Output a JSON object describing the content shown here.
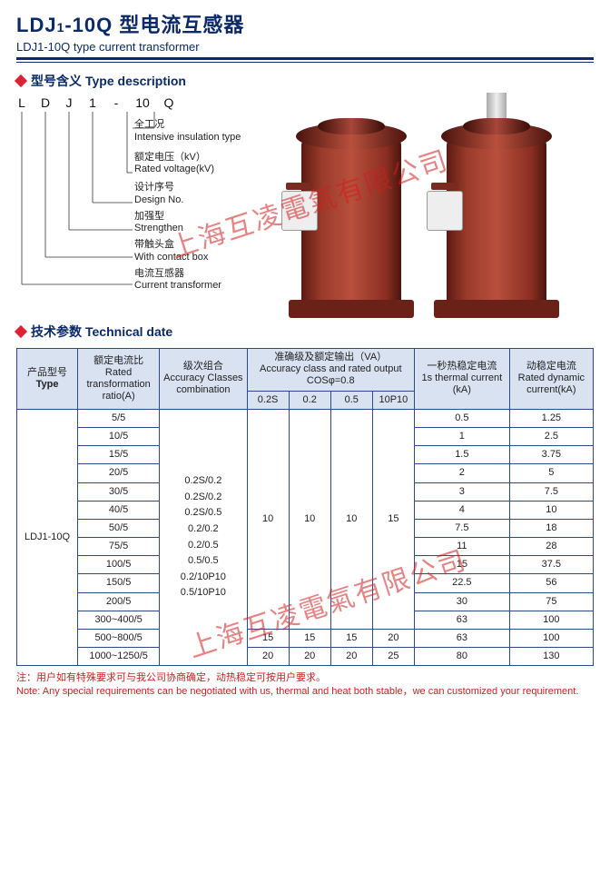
{
  "title": {
    "main_prefix": "LDJ",
    "main_sub": "1",
    "main_suffix": "-10Q 型电流互感器",
    "sub": "LDJ1-10Q type current transformer"
  },
  "section_type": {
    "label_cn": "型号含义",
    "label_en": "Type description"
  },
  "code_letters": [
    "L",
    "D",
    "J",
    "1",
    "-",
    "10",
    "Q"
  ],
  "descriptions": [
    {
      "cn": "全工况",
      "en": "Intensive insulation type"
    },
    {
      "cn": "额定电压（kV）",
      "en": "Rated voltage(kV)"
    },
    {
      "cn": "设计序号",
      "en": "Design No."
    },
    {
      "cn": "加强型",
      "en": "Strengthen"
    },
    {
      "cn": "带触头盒",
      "en": "With contact box"
    },
    {
      "cn": "电流互感器",
      "en": "Current transformer"
    }
  ],
  "watermark": "上海互凌電氣有限公司",
  "section_tech": {
    "label_cn": "技术参数",
    "label_en": "Technical date"
  },
  "table": {
    "headers": {
      "type": {
        "cn": "产品型号",
        "en": "Type"
      },
      "ratio": {
        "cn": "额定电流比",
        "en": "Rated transformation ratio(A)"
      },
      "acc_comb": {
        "cn": "级次组合",
        "en": "Accuracy Classes combination"
      },
      "va_group": {
        "cn": "准确级及额定输出（VA）",
        "en": "Accuracy class and rated output COSφ=0.8"
      },
      "va_cols": [
        "0.2S",
        "0.2",
        "0.5",
        "10P10"
      ],
      "thermal": {
        "cn": "一秒热稳定电流",
        "en": "1s thermal current (kA)"
      },
      "dynamic": {
        "cn": "动稳定电流",
        "en": "Rated dynamic current(kA)"
      }
    },
    "type_value": "LDJ1-10Q",
    "acc_combination": "0.2S/0.2\n0.2S/0.2\n0.2S/0.5\n0.2/0.2\n0.2/0.5\n0.5/0.5\n0.2/10P10\n0.5/10P10",
    "va_main": [
      "10",
      "10",
      "10",
      "15"
    ],
    "rows": [
      {
        "ratio": "5/5",
        "th": "0.5",
        "dy": "1.25"
      },
      {
        "ratio": "10/5",
        "th": "1",
        "dy": "2.5"
      },
      {
        "ratio": "15/5",
        "th": "1.5",
        "dy": "3.75"
      },
      {
        "ratio": "20/5",
        "th": "2",
        "dy": "5"
      },
      {
        "ratio": "30/5",
        "th": "3",
        "dy": "7.5"
      },
      {
        "ratio": "40/5",
        "th": "4",
        "dy": "10"
      },
      {
        "ratio": "50/5",
        "th": "7.5",
        "dy": "18"
      },
      {
        "ratio": "75/5",
        "th": "11",
        "dy": "28"
      },
      {
        "ratio": "100/5",
        "th": "15",
        "dy": "37.5"
      },
      {
        "ratio": "150/5",
        "th": "22.5",
        "dy": "56"
      },
      {
        "ratio": "200/5",
        "th": "30",
        "dy": "75"
      },
      {
        "ratio": "300~400/5",
        "th": "63",
        "dy": "100"
      },
      {
        "ratio": "500~800/5",
        "va": [
          "15",
          "15",
          "15",
          "20"
        ],
        "th": "63",
        "dy": "100"
      },
      {
        "ratio": "1000~1250/5",
        "va": [
          "20",
          "20",
          "20",
          "25"
        ],
        "th": "80",
        "dy": "130"
      }
    ]
  },
  "note": {
    "cn": "注：用户如有特殊要求可与我公司协商确定，动热稳定可按用户要求。",
    "en": "Note: Any special requirements can be negotiated with us, thermal and heat both stable，we can customized your requirement."
  }
}
